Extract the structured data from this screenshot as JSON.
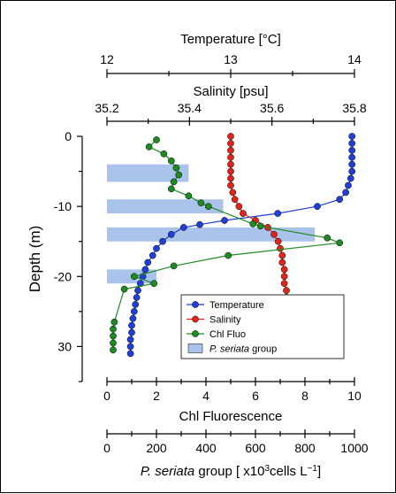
{
  "chart_data": {
    "type": "line",
    "y_axis": {
      "label": "Depth (m)",
      "ylim": [
        35,
        0
      ],
      "ticks": [
        0,
        -10,
        -20,
        30
      ]
    },
    "x_axes": [
      {
        "id": "temperature",
        "label": "Temperature [°C]",
        "range": [
          12,
          14
        ],
        "ticks": [
          12,
          13,
          14
        ],
        "position": "top"
      },
      {
        "id": "salinity",
        "label": "Salinity [psu]",
        "range": [
          35.2,
          35.8
        ],
        "ticks": [
          35.2,
          35.4,
          35.6,
          35.8
        ],
        "position": "top"
      },
      {
        "id": "fluo",
        "label": "Chl Fluorescence",
        "range": [
          0,
          10
        ],
        "ticks": [
          0,
          2,
          4,
          6,
          8,
          10
        ],
        "position": "bottom"
      },
      {
        "id": "pseriata",
        "label_prefix": "P. seriata",
        "label_suffix": " group [ x10",
        "label_exp1": "3",
        "label_mid": "cells L",
        "label_exp2": "−1",
        "label_end": "]",
        "range": [
          0,
          1000
        ],
        "ticks": [
          0,
          200,
          400,
          600,
          800,
          1000
        ],
        "position": "bottom"
      }
    ],
    "series": [
      {
        "name": "Temperature",
        "axis": "temperature",
        "color": "#1f3fd6",
        "depth": [
          0,
          1,
          2,
          3,
          4,
          5,
          6,
          7,
          8,
          9,
          10,
          11,
          12,
          12.6,
          13,
          14,
          15,
          16,
          17,
          18,
          19,
          20,
          21,
          22,
          23,
          24,
          25,
          26,
          27,
          28,
          29,
          30,
          31
        ],
        "values": [
          13.98,
          13.98,
          13.98,
          13.98,
          13.98,
          13.98,
          13.97,
          13.95,
          13.93,
          13.88,
          13.7,
          13.38,
          12.95,
          12.75,
          12.62,
          12.52,
          12.45,
          12.4,
          12.37,
          12.33,
          12.31,
          12.29,
          12.27,
          12.25,
          12.24,
          12.23,
          12.22,
          12.21,
          12.2,
          12.2,
          12.19,
          12.19,
          12.19
        ]
      },
      {
        "name": "Salinity",
        "axis": "salinity",
        "color": "#e0261b",
        "depth": [
          0,
          1,
          2,
          3,
          4,
          5,
          6,
          7,
          8,
          9,
          10,
          11,
          12,
          13,
          14,
          15,
          16,
          17,
          18,
          19,
          20,
          21,
          22,
          23,
          24,
          25,
          26,
          27,
          28,
          29,
          30,
          31
        ],
        "values": [
          35.5,
          35.5,
          35.5,
          35.5,
          35.5,
          35.5,
          35.5,
          35.5,
          35.505,
          35.51,
          35.52,
          35.53,
          35.56,
          35.59,
          35.605,
          35.615,
          35.62,
          35.625,
          35.625,
          35.63,
          35.63,
          35.63,
          35.635,
          35.635,
          35.635,
          35.635,
          35.64,
          35.64,
          35.64,
          35.64,
          35.64,
          35.64
        ]
      },
      {
        "name": "Chl Fluo",
        "axis": "fluo",
        "color": "#1e8a24",
        "depth": [
          0.5,
          1.5,
          2.5,
          3.5,
          4.5,
          5.5,
          6.5,
          7.5,
          8.5,
          9.5,
          10,
          12.5,
          12.8,
          14.5,
          15.2,
          17,
          18.5,
          20,
          21,
          21.8,
          26.5,
          27.5,
          28.5,
          29.5,
          30.5
        ],
        "values": [
          2.0,
          1.7,
          2.3,
          2.6,
          2.8,
          2.9,
          2.7,
          2.6,
          3.3,
          3.8,
          4.1,
          5.9,
          6.2,
          8.9,
          9.4,
          4.9,
          2.7,
          1.1,
          1.9,
          0.7,
          0.3,
          0.25,
          0.25,
          0.25,
          0.25
        ]
      }
    ],
    "bars": {
      "name": "P. seriata group",
      "axis": "pseriata",
      "color": "#a9c3ea",
      "items": [
        {
          "depth_top": 4,
          "depth_bottom": 6.5,
          "value": 330
        },
        {
          "depth_top": 9,
          "depth_bottom": 11,
          "value": 470
        },
        {
          "depth_top": 13,
          "depth_bottom": 15,
          "value": 840
        },
        {
          "depth_top": 19,
          "depth_bottom": 21,
          "value": 200
        }
      ]
    },
    "legend": {
      "placement": "lower-right",
      "entries": [
        {
          "label": "Temperature",
          "color": "#1f3fd6",
          "kind": "marker"
        },
        {
          "label": "Salinity",
          "color": "#e0261b",
          "kind": "marker"
        },
        {
          "label": "Chl Fluo",
          "color": "#1e8a24",
          "kind": "marker"
        },
        {
          "label_italic": "P. seriata",
          "label_rest": " group",
          "color": "#a9c3ea",
          "kind": "box"
        }
      ]
    }
  }
}
